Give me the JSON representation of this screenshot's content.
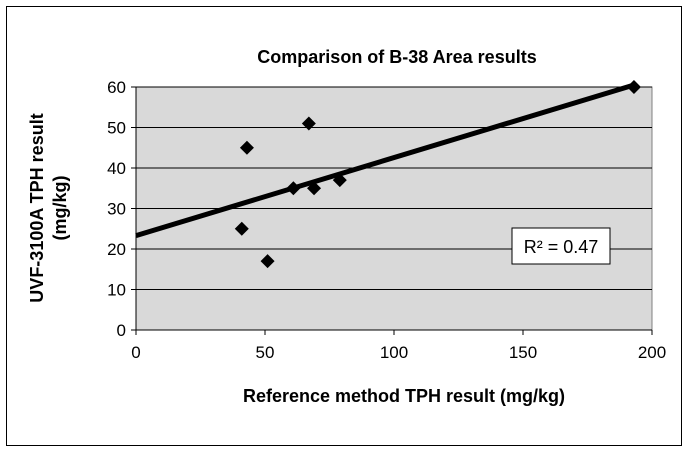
{
  "chart_data": {
    "type": "scatter",
    "title": "Comparison of B-38 Area results",
    "xlabel": "Reference method TPH result (mg/kg)",
    "ylabel_line1": "UVF-3100A TPH result",
    "ylabel_line2": "(mg/kg)",
    "xlim": [
      0,
      200
    ],
    "ylim": [
      0,
      60
    ],
    "x_ticks": [
      0,
      50,
      100,
      150,
      200
    ],
    "y_ticks": [
      0,
      10,
      20,
      30,
      40,
      50,
      60
    ],
    "grid": "horizontal",
    "points": [
      {
        "x": 41,
        "y": 25
      },
      {
        "x": 43,
        "y": 45
      },
      {
        "x": 51,
        "y": 17
      },
      {
        "x": 61,
        "y": 35
      },
      {
        "x": 67,
        "y": 51
      },
      {
        "x": 69,
        "y": 35
      },
      {
        "x": 79,
        "y": 37
      },
      {
        "x": 193,
        "y": 60
      }
    ],
    "trendline": {
      "x0": 0,
      "y0": 23.3,
      "x1": 193,
      "y1": 60.5
    },
    "annotation": {
      "label": "R² = 0.47"
    }
  },
  "colors": {
    "plot_bg": "#d9d9d9",
    "marker": "#000000",
    "line": "#000000",
    "grid": "#000000"
  }
}
